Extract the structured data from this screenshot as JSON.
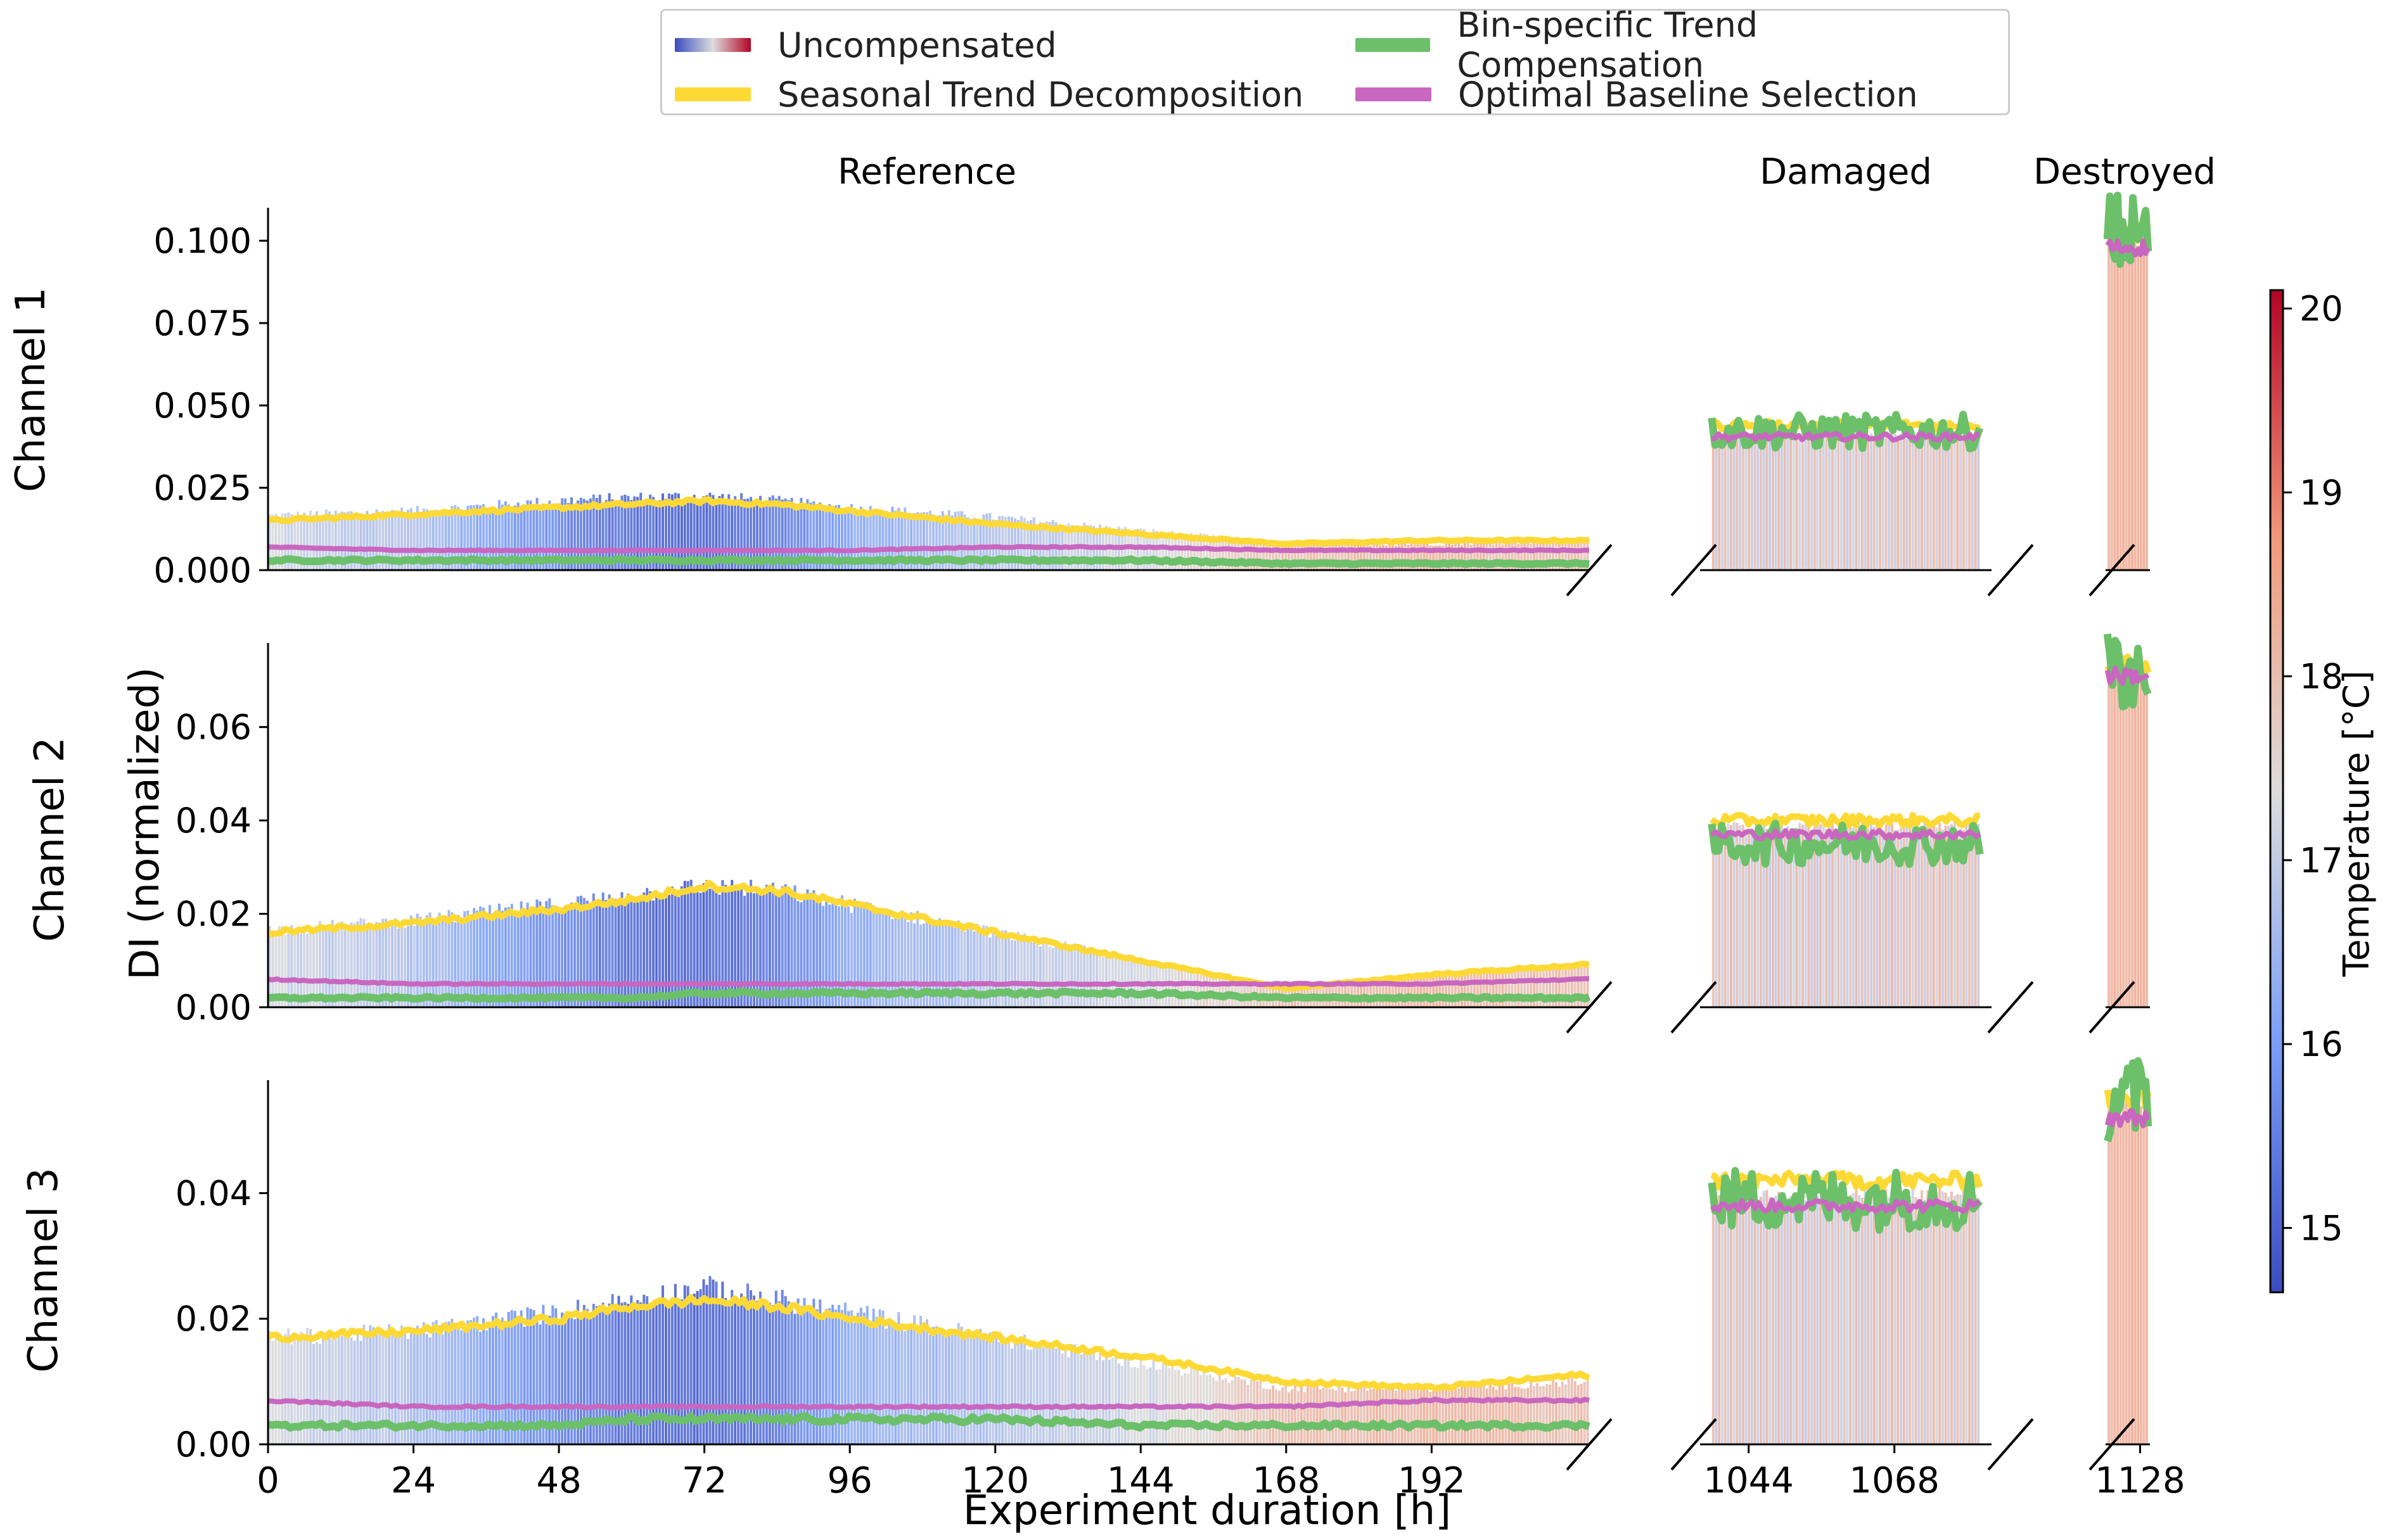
{
  "chart_data": {
    "type": "bar",
    "description_note": "Broken-axis bar + line plot of normalized damage index over experiment duration, colored by temperature",
    "xlabel": "Experiment duration [h]",
    "ylabel": "DI (normalized)",
    "section_titles": [
      "Reference",
      "Damaged",
      "Destroyed"
    ],
    "channels": [
      {
        "name": "Channel 1",
        "ylim": [
          0,
          0.11
        ],
        "yticks": [
          "0.000",
          "0.025",
          "0.050",
          "0.075",
          "0.100"
        ],
        "ytick_values": [
          0,
          0.025,
          0.05,
          0.075,
          0.1
        ]
      },
      {
        "name": "Channel 2",
        "ylim": [
          0,
          0.078
        ],
        "yticks": [
          "0.00",
          "0.02",
          "0.04",
          "0.06"
        ],
        "ytick_values": [
          0,
          0.02,
          0.04,
          0.06
        ]
      },
      {
        "name": "Channel 3",
        "ylim": [
          0,
          0.058
        ],
        "yticks": [
          "0.00",
          "0.02",
          "0.04"
        ],
        "ytick_values": [
          0,
          0.02,
          0.04
        ]
      }
    ],
    "sections": [
      {
        "name": "Reference",
        "xlim": [
          0,
          218
        ],
        "xticks": [
          "0",
          "24",
          "48",
          "72",
          "96",
          "120",
          "144",
          "168",
          "192"
        ],
        "xtick_values": [
          0,
          24,
          48,
          72,
          96,
          120,
          144,
          168,
          192
        ]
      },
      {
        "name": "Damaged",
        "xlim": [
          1036,
          1084
        ],
        "xticks": [
          "1044",
          "1068"
        ],
        "xtick_values": [
          1044,
          1068
        ]
      },
      {
        "name": "Destroyed",
        "xlim": [
          1121,
          1130
        ],
        "xticks": [
          "1128"
        ],
        "xtick_values": [
          1128
        ]
      }
    ],
    "colorbar": {
      "label": "Temperature [°C]",
      "range": [
        14.65,
        20.1
      ],
      "ticks": [
        "15",
        "16",
        "17",
        "18",
        "19",
        "20"
      ],
      "tick_values": [
        15,
        16,
        17,
        18,
        19,
        20
      ],
      "colormap": "coolwarm"
    },
    "series": [
      {
        "name": "Uncompensated",
        "kind": "bars",
        "note": "bars colored by temperature"
      },
      {
        "name": "Seasonal Trend Decomposition",
        "color": "#fdd935"
      },
      {
        "name": "Bin-specific Trend Compensation",
        "color": "#6cc06a"
      },
      {
        "name": "Optimal Baseline Selection",
        "color": "#c967c0"
      }
    ],
    "reference_profile_points": {
      "hours": [
        0,
        24,
        48,
        60,
        72,
        84,
        96,
        120,
        144,
        168,
        192,
        216
      ],
      "channel_1_uncompensated": [
        0.0165,
        0.018,
        0.021,
        0.022,
        0.0225,
        0.021,
        0.019,
        0.016,
        0.012,
        0.008,
        0.008,
        0.009
      ],
      "channel_2_uncompensated": [
        0.0165,
        0.0185,
        0.022,
        0.024,
        0.026,
        0.025,
        0.022,
        0.016,
        0.01,
        0.004,
        0.007,
        0.009
      ],
      "channel_3_uncompensated": [
        0.017,
        0.018,
        0.021,
        0.023,
        0.025,
        0.023,
        0.021,
        0.017,
        0.013,
        0.009,
        0.009,
        0.01
      ],
      "channel_1_seasonal": [
        0.015,
        0.017,
        0.019,
        0.02,
        0.021,
        0.02,
        0.018,
        0.014,
        0.011,
        0.008,
        0.009,
        0.009
      ],
      "channel_2_seasonal": [
        0.016,
        0.018,
        0.021,
        0.023,
        0.026,
        0.025,
        0.022,
        0.016,
        0.01,
        0.004,
        0.007,
        0.009
      ],
      "channel_3_seasonal": [
        0.017,
        0.018,
        0.02,
        0.022,
        0.023,
        0.022,
        0.02,
        0.017,
        0.014,
        0.01,
        0.009,
        0.011
      ],
      "channel_1_bin_specific": [
        0.003,
        0.003,
        0.003,
        0.003,
        0.003,
        0.003,
        0.003,
        0.003,
        0.003,
        0.002,
        0.002,
        0.002
      ],
      "channel_2_bin_specific": [
        0.002,
        0.002,
        0.002,
        0.002,
        0.003,
        0.003,
        0.003,
        0.003,
        0.003,
        0.002,
        0.002,
        0.002
      ],
      "channel_3_bin_specific": [
        0.003,
        0.003,
        0.003,
        0.004,
        0.004,
        0.004,
        0.004,
        0.004,
        0.003,
        0.003,
        0.003,
        0.003
      ],
      "channel_1_optimal_baseline": [
        0.007,
        0.006,
        0.006,
        0.006,
        0.006,
        0.006,
        0.006,
        0.007,
        0.007,
        0.006,
        0.006,
        0.006
      ],
      "channel_2_optimal_baseline": [
        0.006,
        0.005,
        0.005,
        0.005,
        0.005,
        0.005,
        0.005,
        0.005,
        0.005,
        0.005,
        0.005,
        0.006
      ],
      "channel_3_optimal_baseline": [
        0.007,
        0.006,
        0.006,
        0.006,
        0.006,
        0.006,
        0.006,
        0.006,
        0.006,
        0.006,
        0.007,
        0.007
      ],
      "temperature": [
        17.2,
        16.7,
        15.6,
        15.1,
        15.0,
        15.4,
        16.2,
        16.8,
        17.2,
        18.0,
        18.2,
        18.0
      ]
    },
    "damaged_levels": {
      "channel_1": {
        "uncompensated": 0.041,
        "seasonal": 0.044,
        "bin_specific": 0.042,
        "optimal_baseline": 0.0405
      },
      "channel_2": {
        "uncompensated": 0.039,
        "seasonal": 0.04,
        "bin_specific": 0.035,
        "optimal_baseline": 0.037
      },
      "channel_3": {
        "uncompensated": 0.04,
        "seasonal": 0.042,
        "bin_specific": 0.039,
        "optimal_baseline": 0.038
      },
      "temperature": [
        18.2,
        17.0
      ]
    },
    "destroyed_levels": {
      "channel_1": {
        "uncompensated": 0.1,
        "seasonal": 0.103,
        "bin_specific": 0.102,
        "optimal_baseline": 0.098
      },
      "channel_2": {
        "uncompensated": 0.072,
        "seasonal": 0.073,
        "bin_specific": 0.072,
        "optimal_baseline": 0.071
      },
      "channel_3": {
        "uncompensated": 0.054,
        "seasonal": 0.055,
        "bin_specific": 0.055,
        "optimal_baseline": 0.052
      },
      "temperature": [
        18.4
      ]
    }
  }
}
